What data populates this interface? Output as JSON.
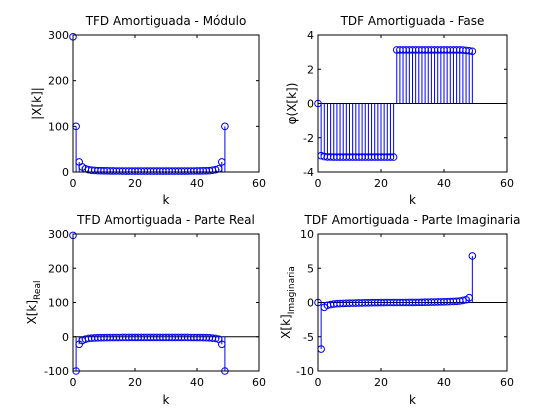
{
  "figure": {
    "background": "#ffffff",
    "stem_color": "#0000ff"
  },
  "chart_data": [
    {
      "type": "stem",
      "title": "TFD Amortiguada - Módulo",
      "xlabel": "k",
      "ylabel": "|X[k]|",
      "xlim": [
        0,
        60
      ],
      "ylim": [
        0,
        300
      ],
      "xticks": [
        0,
        20,
        40,
        60
      ],
      "yticks": [
        0,
        100,
        200,
        300
      ],
      "zero_line": false,
      "x": [
        0,
        1,
        2,
        3,
        4,
        5,
        6,
        7,
        8,
        9,
        10,
        11,
        12,
        13,
        14,
        15,
        16,
        17,
        18,
        19,
        20,
        21,
        22,
        23,
        24,
        25,
        26,
        27,
        28,
        29,
        30,
        31,
        32,
        33,
        34,
        35,
        36,
        37,
        38,
        39,
        40,
        41,
        42,
        43,
        44,
        45,
        46,
        47,
        48,
        49
      ],
      "values": [
        296,
        100,
        22,
        11,
        7,
        5,
        4,
        3.5,
        3,
        2.8,
        2.6,
        2.5,
        2.4,
        2.3,
        2.2,
        2.2,
        2.1,
        2.1,
        2,
        2,
        2,
        2,
        2,
        2,
        2,
        2,
        2,
        2,
        2,
        2,
        2,
        2,
        2,
        2,
        2,
        2,
        2.1,
        2.1,
        2.2,
        2.2,
        2.3,
        2.4,
        2.5,
        2.6,
        3,
        4,
        5,
        7,
        22,
        100
      ]
    },
    {
      "type": "stem",
      "title": "TDF Amortiguada - Fase",
      "xlabel": "k",
      "ylabel": "φ(X[k])",
      "xlim": [
        0,
        60
      ],
      "ylim": [
        -4,
        4
      ],
      "xticks": [
        0,
        20,
        40,
        60
      ],
      "yticks": [
        -4,
        -2,
        0,
        2,
        4
      ],
      "zero_line": true,
      "x": [
        0,
        1,
        2,
        3,
        4,
        5,
        6,
        7,
        8,
        9,
        10,
        11,
        12,
        13,
        14,
        15,
        16,
        17,
        18,
        19,
        20,
        21,
        22,
        23,
        24,
        25,
        26,
        27,
        28,
        29,
        30,
        31,
        32,
        33,
        34,
        35,
        36,
        37,
        38,
        39,
        40,
        41,
        42,
        43,
        44,
        45,
        46,
        47,
        48,
        49
      ],
      "values": [
        0,
        -3.05,
        -3.1,
        -3.12,
        -3.12,
        -3.13,
        -3.13,
        -3.13,
        -3.13,
        -3.13,
        -3.13,
        -3.13,
        -3.13,
        -3.13,
        -3.13,
        -3.13,
        -3.13,
        -3.13,
        -3.13,
        -3.13,
        -3.13,
        -3.13,
        -3.13,
        -3.13,
        -3.13,
        3.13,
        3.13,
        3.13,
        3.13,
        3.13,
        3.13,
        3.13,
        3.13,
        3.13,
        3.13,
        3.13,
        3.13,
        3.13,
        3.13,
        3.13,
        3.13,
        3.13,
        3.13,
        3.13,
        3.13,
        3.13,
        3.12,
        3.1,
        3.08,
        3.05
      ]
    },
    {
      "type": "stem",
      "title": "TFD Amortiguada - Parte Real",
      "xlabel": "k",
      "ylabel_main": "X[k]",
      "ylabel_sub": "Real",
      "xlim": [
        0,
        60
      ],
      "ylim": [
        -100,
        300
      ],
      "xticks": [
        0,
        20,
        40,
        60
      ],
      "yticks": [
        -100,
        0,
        100,
        200,
        300
      ],
      "zero_line": true,
      "x": [
        0,
        1,
        2,
        3,
        4,
        5,
        6,
        7,
        8,
        9,
        10,
        11,
        12,
        13,
        14,
        15,
        16,
        17,
        18,
        19,
        20,
        21,
        22,
        23,
        24,
        25,
        26,
        27,
        28,
        29,
        30,
        31,
        32,
        33,
        34,
        35,
        36,
        37,
        38,
        39,
        40,
        41,
        42,
        43,
        44,
        45,
        46,
        47,
        48,
        49
      ],
      "values": [
        296,
        -100,
        -22,
        -11,
        -7,
        -5,
        -4,
        -3.5,
        -3,
        -2.8,
        -2.6,
        -2.5,
        -2.4,
        -2.3,
        -2.2,
        -2.2,
        -2.1,
        -2.1,
        -2,
        -2,
        -2,
        -2,
        -2,
        -2,
        -2,
        -2,
        -2,
        -2,
        -2,
        -2,
        -2,
        -2,
        -2,
        -2,
        -2,
        -2,
        -2.1,
        -2.1,
        -2.2,
        -2.2,
        -2.3,
        -2.4,
        -2.5,
        -2.6,
        -3,
        -4,
        -5,
        -7,
        -22,
        -100
      ]
    },
    {
      "type": "stem",
      "title": "TDF Amortiguada - Parte Imaginaria",
      "xlabel": "k",
      "ylabel_main": "X[k]",
      "ylabel_sub": "Imaginaria",
      "xlim": [
        0,
        60
      ],
      "ylim": [
        -10,
        10
      ],
      "xticks": [
        0,
        20,
        40,
        60
      ],
      "yticks": [
        -10,
        -5,
        0,
        5,
        10
      ],
      "zero_line": true,
      "x": [
        0,
        1,
        2,
        3,
        4,
        5,
        6,
        7,
        8,
        9,
        10,
        11,
        12,
        13,
        14,
        15,
        16,
        17,
        18,
        19,
        20,
        21,
        22,
        23,
        24,
        25,
        26,
        27,
        28,
        29,
        30,
        31,
        32,
        33,
        34,
        35,
        36,
        37,
        38,
        39,
        40,
        41,
        42,
        43,
        44,
        45,
        46,
        47,
        48,
        49
      ],
      "values": [
        0,
        -6.8,
        -0.7,
        -0.4,
        -0.3,
        -0.22,
        -0.18,
        -0.15,
        -0.13,
        -0.11,
        -0.1,
        -0.09,
        -0.08,
        -0.07,
        -0.06,
        -0.05,
        -0.04,
        -0.03,
        -0.02,
        -0.02,
        -0.01,
        -0.01,
        0,
        0,
        0,
        0,
        0,
        0,
        0,
        0.01,
        0.01,
        0.02,
        0.02,
        0.03,
        0.04,
        0.05,
        0.06,
        0.07,
        0.08,
        0.09,
        0.1,
        0.11,
        0.13,
        0.15,
        0.18,
        0.22,
        0.3,
        0.4,
        0.7,
        6.8
      ]
    }
  ]
}
